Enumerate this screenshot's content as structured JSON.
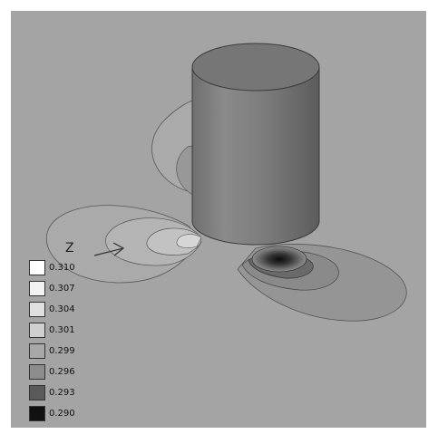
{
  "axis": {
    "label": "Z"
  },
  "legend": {
    "levels": [
      {
        "label": "0.310",
        "color": "#ffffff"
      },
      {
        "label": "0.307",
        "color": "#f2f2f2"
      },
      {
        "label": "0.304",
        "color": "#e0e0e0"
      },
      {
        "label": "0.301",
        "color": "#cfcfcf"
      },
      {
        "label": "0.299",
        "color": "#a8a8a8"
      },
      {
        "label": "0.296",
        "color": "#8c8c8c"
      },
      {
        "label": "0.293",
        "color": "#5a5a5a"
      },
      {
        "label": "0.290",
        "color": "#111111"
      }
    ]
  }
}
